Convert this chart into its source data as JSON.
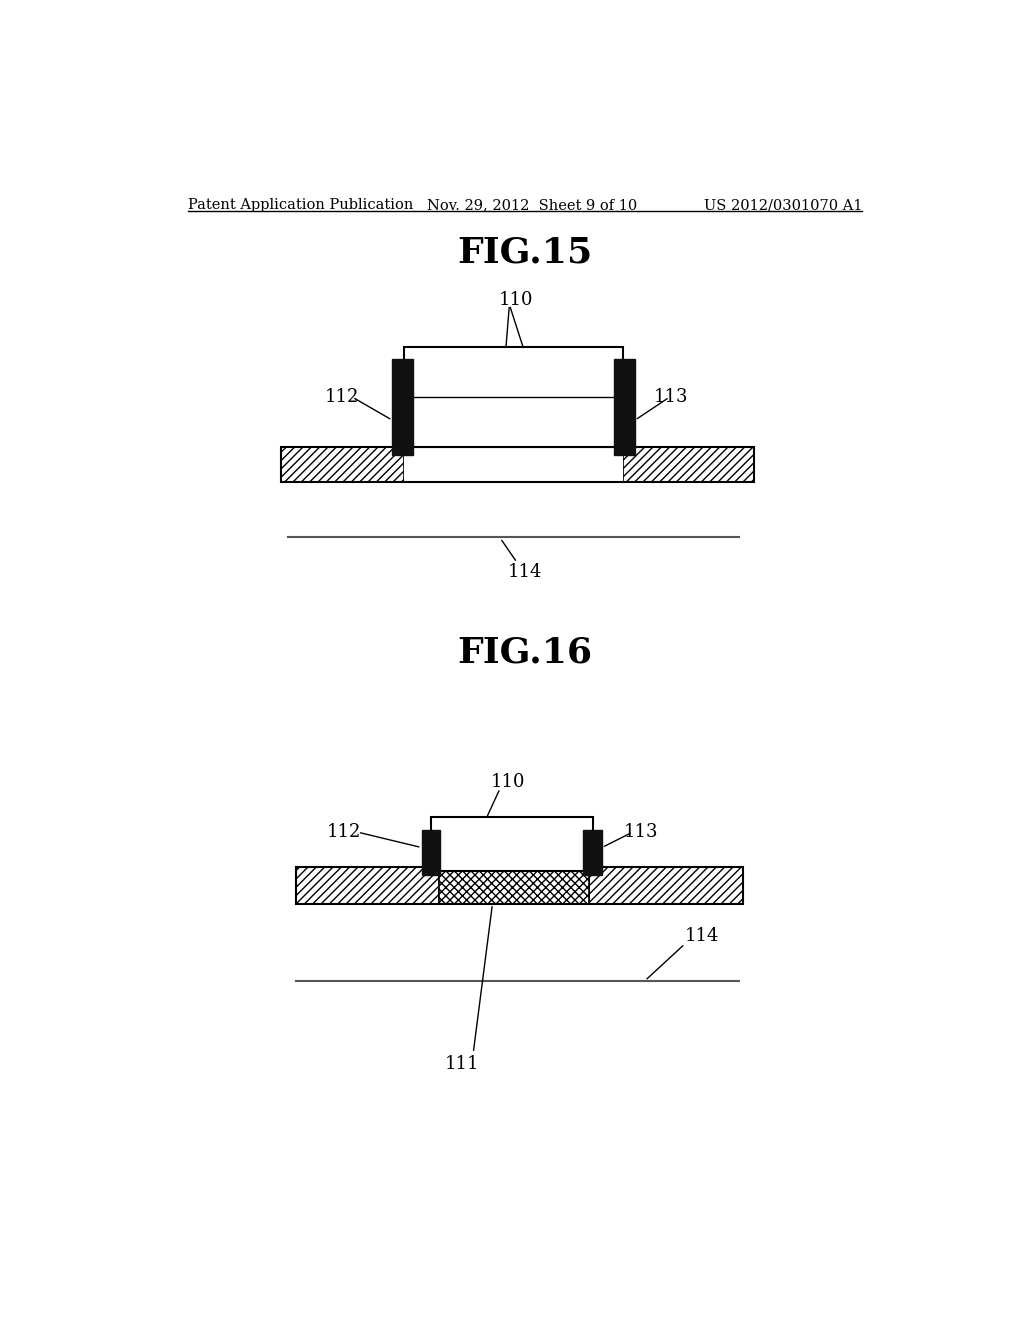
{
  "header_left": "Patent Application Publication",
  "header_mid": "Nov. 29, 2012  Sheet 9 of 10",
  "header_right": "US 2012/0301070 A1",
  "fig15_title": "FIG.15",
  "fig16_title": "FIG.16",
  "bg_color": "#ffffff"
}
